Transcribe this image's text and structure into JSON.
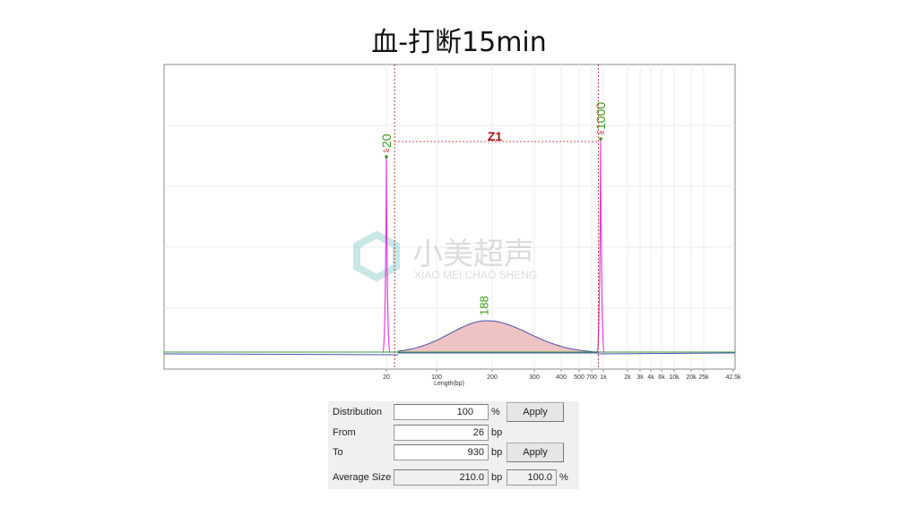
{
  "title": "血-打断15min",
  "watermark": {
    "cn": "小美超声",
    "en": "XIAO MEI CHAO SHENG"
  },
  "chart_data": {
    "type": "line",
    "xlabel": "Length(bp)",
    "x_scale": "log-like (sizing ladder)",
    "xticks": [
      "20",
      "100",
      "200",
      "300",
      "400",
      "500",
      "700",
      "1k",
      "2k",
      "3k",
      "4k",
      "6k",
      "10k",
      "20k",
      "25k",
      "42.5k"
    ],
    "markers": [
      {
        "label": "20",
        "tag": "LM",
        "bp": 20
      },
      {
        "label": "1000",
        "tag": "UM",
        "bp": 1000
      }
    ],
    "peaks": [
      {
        "label": "188",
        "bp": 188
      }
    ],
    "region": {
      "label": "Z1",
      "from_bp": 26,
      "to_bp": 930
    },
    "grid": true,
    "colors": {
      "trace": "#4b4fb0",
      "marker_peak": "#e040e0",
      "fill": "#e8b4b4",
      "label": "#3a9a1a",
      "region": "#b01010",
      "baseline": "#3aa33a"
    }
  },
  "panel": {
    "distribution_label": "Distribution",
    "distribution_value": "100",
    "distribution_unit": "%",
    "apply1": "Apply",
    "from_label": "From",
    "from_value": "26",
    "from_unit": "bp",
    "to_label": "To",
    "to_value": "930",
    "to_unit": "bp",
    "apply2": "Apply",
    "avg_label": "Average Size",
    "avg_value": "210.0",
    "avg_unit": "bp",
    "pct_value": "100.0",
    "pct_unit": "%"
  }
}
